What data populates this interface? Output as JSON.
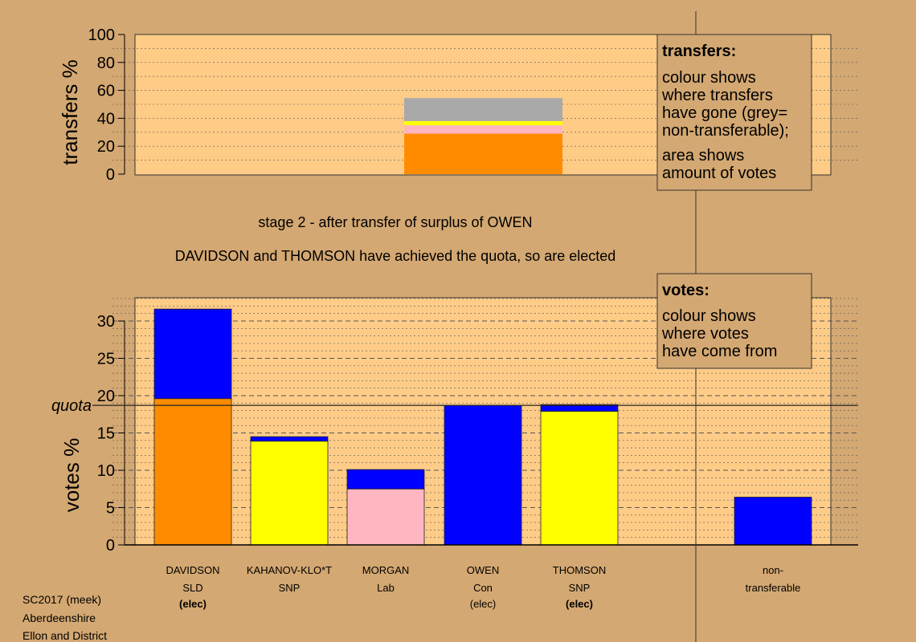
{
  "chart_data": [
    {
      "type": "bar",
      "stacked": true,
      "ylabel": "transfers %",
      "ylim": [
        0,
        100
      ],
      "yticks": [
        0,
        20,
        40,
        60,
        80,
        100
      ],
      "series": [
        {
          "source": "DAVIDSON",
          "color": "#FF8C00",
          "value": 29
        },
        {
          "source": "MORGAN",
          "color": "#FFB6C1",
          "value": 6
        },
        {
          "source": "KAHANOV-KLO*T",
          "color": "#FFFF00",
          "value": 1.5
        },
        {
          "source": "THOMSON",
          "color": "#FFFF00",
          "value": 1.5
        },
        {
          "source": "non-transferable",
          "color": "#A9A9A9",
          "value": 16.5
        }
      ],
      "legend_box": {
        "heading": "transfers:",
        "lines1": [
          "colour shows",
          "where transfers",
          "have gone (grey=",
          "non-transferable);"
        ],
        "lines2": [
          "area shows",
          "amount of votes"
        ]
      }
    },
    {
      "type": "bar",
      "stacked": true,
      "ylabel": "votes %",
      "ylim": [
        0,
        33
      ],
      "yticks": [
        0,
        5,
        10,
        15,
        20,
        25,
        30
      ],
      "quota": 18.7,
      "quota_label": "quota",
      "categories": [
        {
          "name": "DAVIDSON",
          "party": "SLD",
          "status": "(elec)",
          "status_bold": true,
          "segments": [
            {
              "color": "#FF8C00",
              "value": 19.6
            },
            {
              "color": "#0000FF",
              "value": 12.0
            }
          ]
        },
        {
          "name": "KAHANOV-KLO*T",
          "party": "SNP",
          "status": "",
          "status_bold": false,
          "segments": [
            {
              "color": "#FFFF00",
              "value": 13.9
            },
            {
              "color": "#0000FF",
              "value": 0.6
            }
          ]
        },
        {
          "name": "MORGAN",
          "party": "Lab",
          "status": "",
          "status_bold": false,
          "segments": [
            {
              "color": "#FFB6C1",
              "value": 7.5
            },
            {
              "color": "#0000FF",
              "value": 2.6
            }
          ]
        },
        {
          "name": "OWEN",
          "party": "Con",
          "status": "(elec)",
          "status_bold": false,
          "segments": [
            {
              "color": "#0000FF",
              "value": 18.7
            }
          ]
        },
        {
          "name": "THOMSON",
          "party": "SNP",
          "status": "(elec)",
          "status_bold": true,
          "segments": [
            {
              "color": "#FFFF00",
              "value": 17.9
            },
            {
              "color": "#0000FF",
              "value": 0.9
            }
          ]
        },
        {
          "name": "non-",
          "party": "transferable",
          "status": "",
          "status_bold": false,
          "segments": [
            {
              "color": "#0000FF",
              "value": 6.4
            }
          ]
        }
      ],
      "legend_box": {
        "heading": "votes:",
        "lines1": [
          "colour shows",
          "where votes",
          "have come from"
        ]
      }
    }
  ],
  "messages": {
    "stage": "stage 2 - after transfer of surplus of OWEN",
    "elected": "DAVIDSON and THOMSON have achieved the quota, so are elected"
  },
  "footer": [
    "SC2017 (meek)",
    "Aberdeenshire",
    "Ellon and District"
  ]
}
